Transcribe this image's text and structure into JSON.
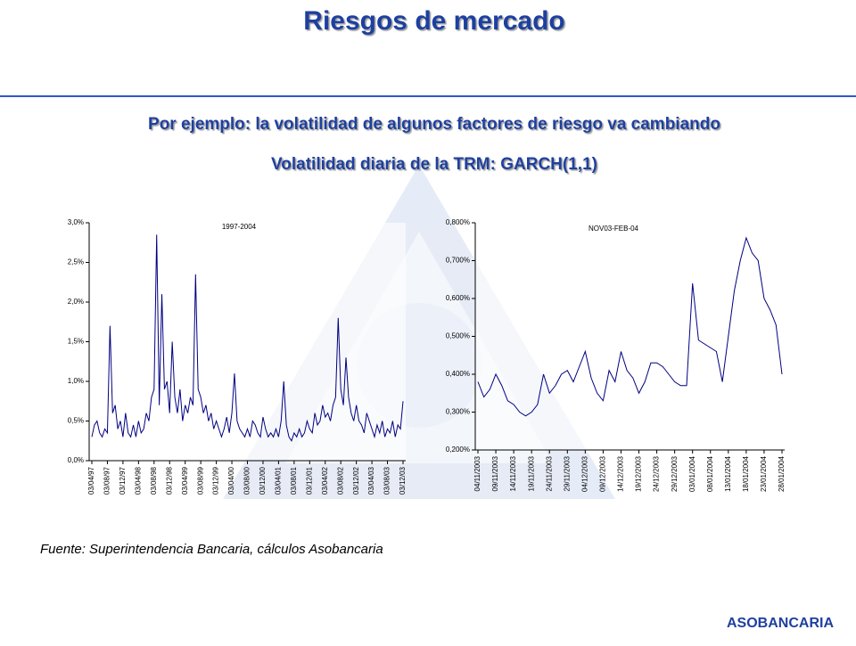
{
  "slide": {
    "title": "Riesgos de mercado",
    "subtitle": "Por ejemplo: la volatilidad de algunos factores de riesgo va cambiando",
    "chart_heading": "Volatilidad diaria de la TRM: GARCH(1,1)",
    "source": "Fuente: Superintendencia Bancaria, cálculos Asobancaria",
    "footer": "ASOBANCARIA"
  },
  "chart_data": [
    {
      "type": "line",
      "title": "1997-2004",
      "categories": [
        "03/04/97",
        null,
        null,
        null,
        null,
        null,
        "03/08/97",
        null,
        null,
        null,
        null,
        null,
        "03/12/97",
        null,
        null,
        null,
        null,
        null,
        "03/04/98",
        null,
        null,
        null,
        null,
        null,
        "03/08/98",
        null,
        null,
        null,
        null,
        null,
        "03/12/98",
        null,
        null,
        null,
        null,
        null,
        "03/04/99",
        null,
        null,
        null,
        null,
        null,
        "03/08/99",
        null,
        null,
        null,
        null,
        null,
        "03/12/99",
        null,
        null,
        null,
        null,
        null,
        "03/04/00",
        null,
        null,
        null,
        null,
        null,
        "03/08/00",
        null,
        null,
        null,
        null,
        null,
        "03/12/00",
        null,
        null,
        null,
        null,
        null,
        "03/04/01",
        null,
        null,
        null,
        null,
        null,
        "03/08/01",
        null,
        null,
        null,
        null,
        null,
        "03/12/01",
        null,
        null,
        null,
        null,
        null,
        "03/04/02",
        null,
        null,
        null,
        null,
        null,
        "03/08/02",
        null,
        null,
        null,
        null,
        null,
        "03/12/02",
        null,
        null,
        null,
        null,
        null,
        "03/04/03",
        null,
        null,
        null,
        null,
        null,
        "03/08/03",
        null,
        null,
        null,
        null,
        null,
        "03/12/03"
      ],
      "series": [
        {
          "name": null,
          "color": "#000080",
          "values": [
            0.3,
            0.45,
            0.5,
            0.35,
            0.3,
            0.4,
            0.35,
            1.7,
            0.6,
            0.7,
            0.4,
            0.5,
            0.3,
            0.6,
            0.35,
            0.3,
            0.45,
            0.3,
            0.5,
            0.35,
            0.4,
            0.6,
            0.5,
            0.8,
            0.9,
            2.85,
            0.7,
            2.1,
            0.9,
            1.0,
            0.6,
            1.5,
            0.8,
            0.6,
            0.9,
            0.5,
            0.7,
            0.6,
            0.8,
            0.7,
            2.35,
            0.9,
            0.8,
            0.6,
            0.7,
            0.5,
            0.6,
            0.4,
            0.5,
            0.4,
            0.3,
            0.4,
            0.55,
            0.35,
            0.6,
            1.1,
            0.5,
            0.4,
            0.35,
            0.3,
            0.4,
            0.3,
            0.5,
            0.45,
            0.35,
            0.3,
            0.55,
            0.4,
            0.3,
            0.35,
            0.3,
            0.4,
            0.3,
            0.5,
            1.0,
            0.45,
            0.3,
            0.25,
            0.35,
            0.3,
            0.4,
            0.3,
            0.35,
            0.5,
            0.4,
            0.35,
            0.6,
            0.45,
            0.5,
            0.7,
            0.55,
            0.6,
            0.5,
            0.7,
            0.8,
            1.8,
            0.9,
            0.7,
            1.3,
            0.8,
            0.6,
            0.5,
            0.7,
            0.5,
            0.45,
            0.35,
            0.6,
            0.5,
            0.4,
            0.3,
            0.45,
            0.35,
            0.5,
            0.3,
            0.4,
            0.35,
            0.5,
            0.3,
            0.45,
            0.4,
            0.75
          ]
        }
      ],
      "ylim": [
        0,
        3.0
      ],
      "yticks": [
        {
          "value": 0,
          "label": "0,0%"
        },
        {
          "value": 0.5,
          "label": "0,5%"
        },
        {
          "value": 1.0,
          "label": "1,0%"
        },
        {
          "value": 1.5,
          "label": "1,5%"
        },
        {
          "value": 2.0,
          "label": "2,0%"
        },
        {
          "value": 2.5,
          "label": "2,5%"
        },
        {
          "value": 3.0,
          "label": "3,0%"
        }
      ]
    },
    {
      "type": "line",
      "title": "NOV03-FEB-04",
      "categories": [
        "04/11/2003",
        null,
        null,
        "09/11/2003",
        null,
        null,
        "14/11/2003",
        null,
        null,
        "19/11/2003",
        null,
        null,
        "24/11/2003",
        null,
        null,
        "29/11/2003",
        null,
        null,
        "04/12/2003",
        null,
        null,
        "09/12/2003",
        null,
        null,
        "14/12/2003",
        null,
        null,
        "19/12/2003",
        null,
        null,
        "24/12/2003",
        null,
        null,
        "29/12/2003",
        null,
        null,
        "03/01/2004",
        null,
        null,
        "08/01/2004",
        null,
        null,
        "13/01/2004",
        null,
        null,
        "18/01/2004",
        null,
        null,
        "23/01/2004",
        null,
        null,
        "28/01/2004"
      ],
      "series": [
        {
          "name": null,
          "color": "#000080",
          "values": [
            0.38,
            0.34,
            0.36,
            0.4,
            0.37,
            0.33,
            0.32,
            0.3,
            0.29,
            0.3,
            0.32,
            0.4,
            0.35,
            0.37,
            0.4,
            0.41,
            0.38,
            0.42,
            0.46,
            0.39,
            0.35,
            0.33,
            0.41,
            0.38,
            0.46,
            0.41,
            0.39,
            0.35,
            0.38,
            0.43,
            0.43,
            0.42,
            0.4,
            0.38,
            0.37,
            0.37,
            0.64,
            0.49,
            0.48,
            0.47,
            0.46,
            0.38,
            0.5,
            0.62,
            0.7,
            0.76,
            0.72,
            0.7,
            0.6,
            0.57,
            0.53,
            0.4
          ]
        }
      ],
      "ylim": [
        0.2,
        0.8
      ],
      "yticks": [
        {
          "value": 0.2,
          "label": "0,200%"
        },
        {
          "value": 0.3,
          "label": "0,300%"
        },
        {
          "value": 0.4,
          "label": "0,400%"
        },
        {
          "value": 0.5,
          "label": "0,500%"
        },
        {
          "value": 0.6,
          "label": "0,600%"
        },
        {
          "value": 0.7,
          "label": "0,700%"
        },
        {
          "value": 0.8,
          "label": "0,800%"
        }
      ]
    }
  ]
}
